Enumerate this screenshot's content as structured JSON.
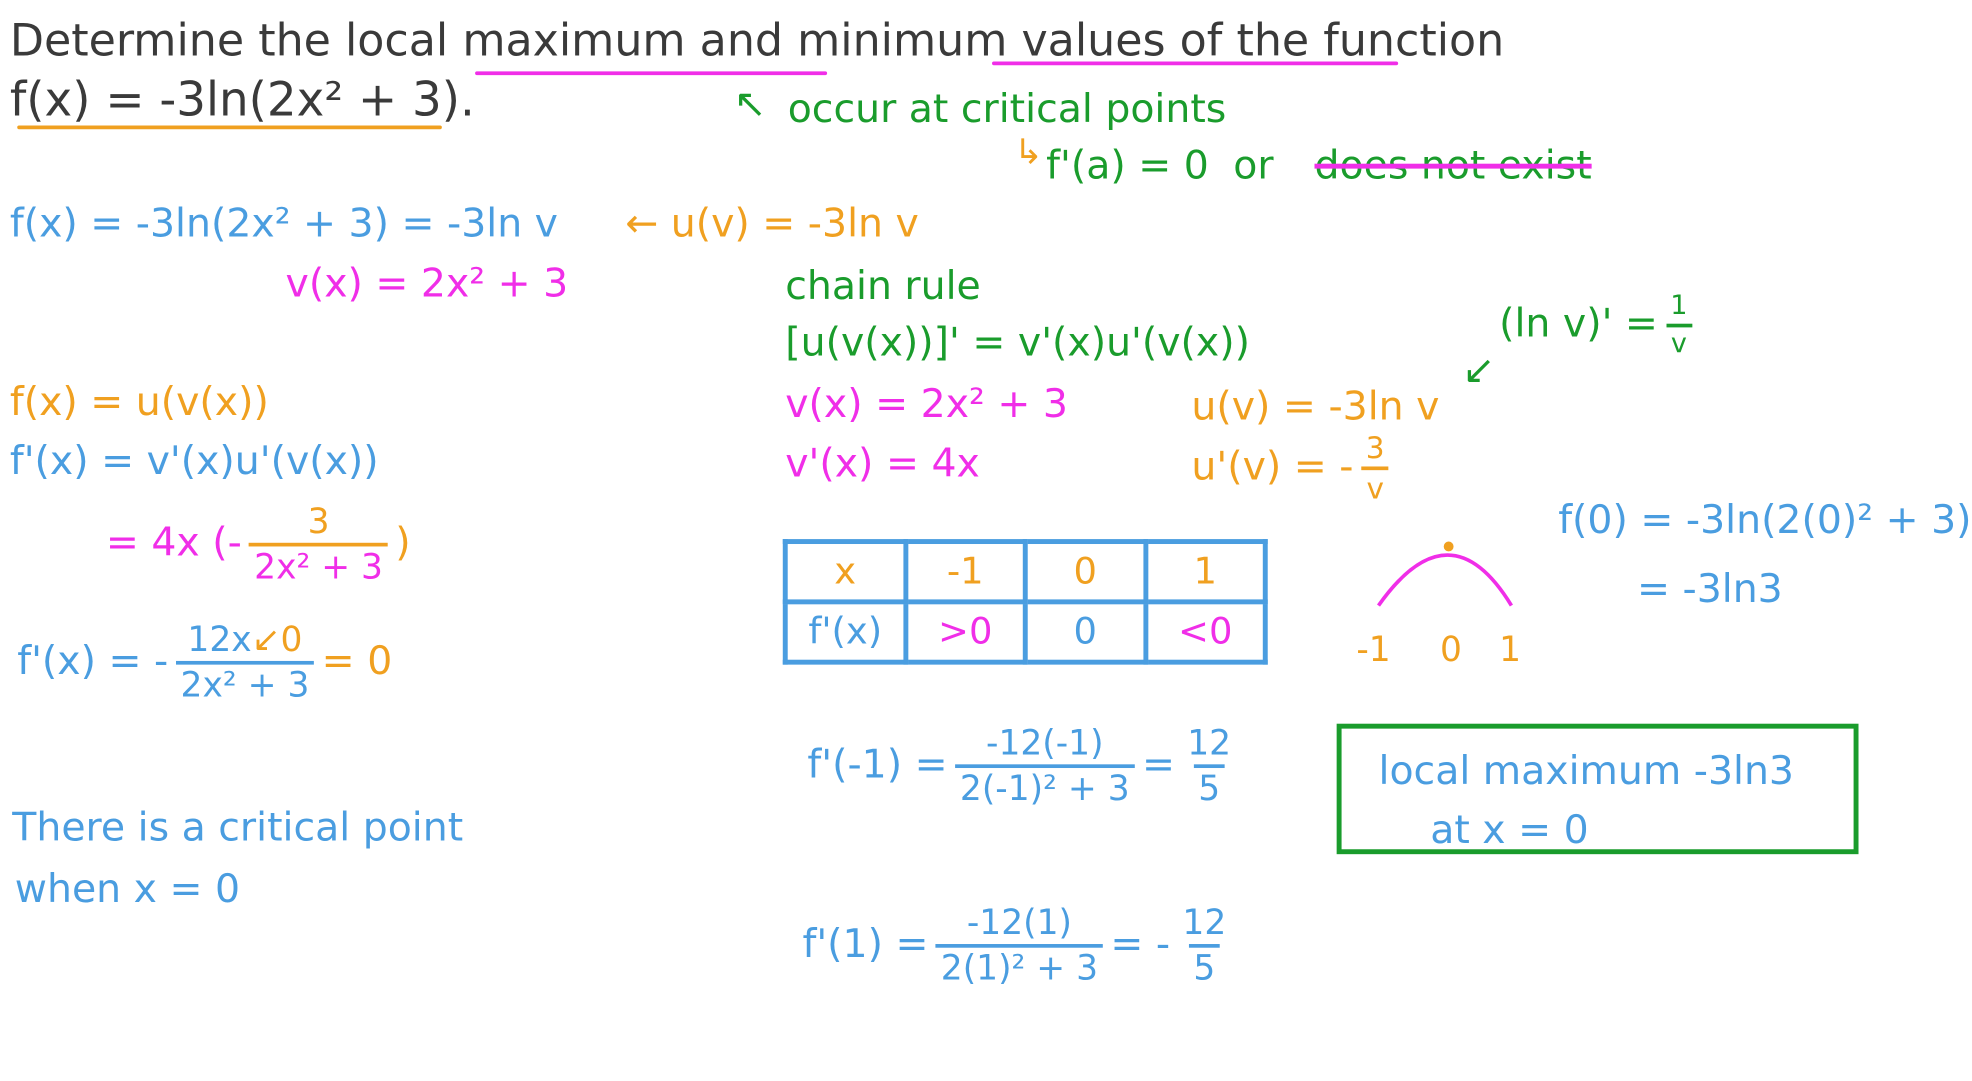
{
  "question": {
    "line1": "Determine the local maximum and minimum values of the function",
    "line2": "f(x) = -3ln(2x² + 3)."
  },
  "notes": {
    "occur": "occur at critical points",
    "condition": "f'(a) = 0",
    "or": "or",
    "dne": "does not exist"
  },
  "rewrite": {
    "f_eq": "f(x) = -3ln(2x² + 3) = -3ln v",
    "u_def": "← u(v) = -3ln v",
    "v_def": "v(x) = 2x² + 3"
  },
  "chain": {
    "title": "chain rule",
    "rule": "[u(v(x))]' = v'(x)u'(v(x))",
    "ln_deriv_lhs": "(ln v)' =",
    "ln_deriv_num": "1",
    "ln_deriv_den": "v",
    "v": "v(x) = 2x² + 3",
    "vp": "v'(x) = 4x",
    "u": "u(v) = -3ln v",
    "up_lhs": "u'(v) = -",
    "up_num": "3",
    "up_den": "v"
  },
  "left": {
    "f_comp": "f(x) = u(v(x))",
    "fp": "f'(x) = v'(x)u'(v(x))",
    "step_lhs": "= 4x (-",
    "step_num": "3",
    "step_den": "2x² + 3",
    "step_rhs": ")",
    "fp2_lhs": "f'(x) = -",
    "fp2_num": "12x",
    "fp2_mark": "↙0",
    "fp2_den": "2x² + 3",
    "fp2_rhs": "= 0",
    "conclusion1": "There is a critical point",
    "conclusion2": "when x = 0"
  },
  "table": {
    "headers": [
      "x",
      "-1",
      "0",
      "1"
    ],
    "row": [
      "f'(x)",
      ">0",
      "0",
      "<0"
    ]
  },
  "sketch": {
    "ticks": [
      "-1",
      "0",
      "1"
    ]
  },
  "f0": {
    "line1": "f(0) = -3ln(2(0)² + 3)",
    "line2": "= -3ln3"
  },
  "eval": {
    "m1_lhs": "f'(-1) =",
    "m1_num": "-12(-1)",
    "m1_den": "2(-1)² + 3",
    "m1_eq": "=",
    "m1_rnum": "12",
    "m1_rden": "5",
    "p1_lhs": "f'(1) =",
    "p1_num": "-12(1)",
    "p1_den": "2(1)² + 3",
    "p1_eq": "= -",
    "p1_rnum": "12",
    "p1_rden": "5"
  },
  "answer": {
    "line1": "local maximum  -3ln3",
    "line2": "at x = 0"
  },
  "colors": {
    "text": "#3a3a3a",
    "magenta": "#f02ee8",
    "green": "#1a9c2c",
    "orange": "#f0a020",
    "blue": "#4a9de0"
  }
}
